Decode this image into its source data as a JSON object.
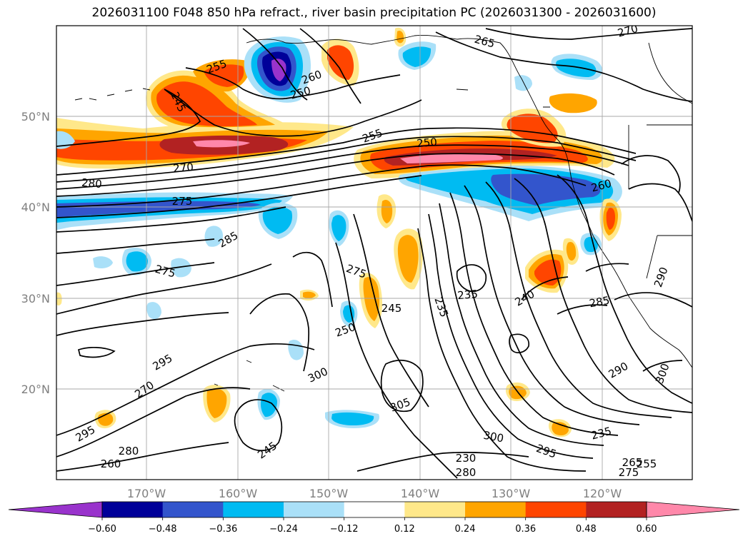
{
  "title": "2026031100 F048 850 hPa refract., river basin precipitation PC (2026031300 - 2026031600)",
  "latitude_labels": [
    "50°N",
    "40°N",
    "30°N",
    "20°N"
  ],
  "longitude_labels": [
    "170°W",
    "160°W",
    "150°W",
    "140°W",
    "130°W",
    "120°W"
  ],
  "colorbar": {
    "ticks": [
      "−0.60",
      "−0.48",
      "−0.36",
      "−0.24",
      "−0.12",
      "0.12",
      "0.24",
      "0.36",
      "0.48",
      "0.60"
    ],
    "colors": [
      "#9933cc",
      "#000099",
      "#3355cc",
      "#00bbf2",
      "#aae0f8",
      "#ffffff",
      "#ffe88a",
      "#ffa500",
      "#ff4500",
      "#b22222",
      "#ff88aa"
    ]
  },
  "shading_colors": {
    "neg_strong": "#3355cc",
    "neg_mid": "#00bbf2",
    "neg_weak": "#aae0f8",
    "pos_weak": "#ffe88a",
    "pos_mid": "#ffa500",
    "pos_strong": "#ff4500",
    "pos_vstrong": "#b22222",
    "pos_max": "#ff88aa",
    "neg_max": "#9933cc",
    "neg_dark": "#000099"
  },
  "contour_labels": [
    "265",
    "270",
    "255",
    "260",
    "250",
    "245",
    "255",
    "270",
    "280",
    "275",
    "285",
    "275",
    "275",
    "250",
    "245",
    "235",
    "235",
    "240",
    "285",
    "290",
    "295",
    "270",
    "300",
    "305",
    "295",
    "280",
    "260",
    "245",
    "300",
    "295",
    "235",
    "230",
    "280",
    "290",
    "300",
    "265",
    "255",
    "275",
    "250",
    "260"
  ]
}
